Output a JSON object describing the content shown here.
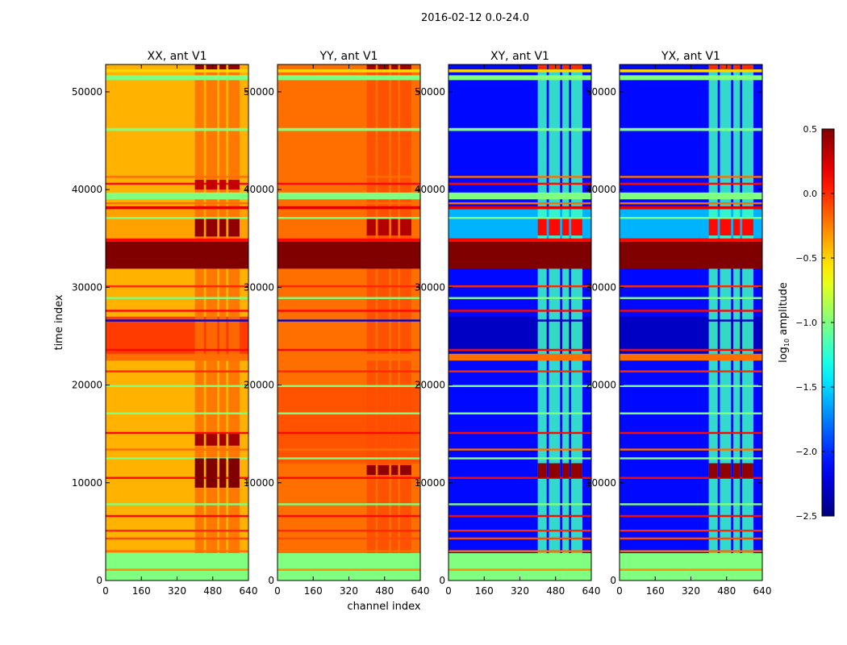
{
  "chart_data": {
    "type": "heatmap",
    "title": "2016-02-12 0.0-24.0",
    "xlabel": "channel index",
    "ylabel": "time index",
    "xlim": [
      0,
      640
    ],
    "ylim": [
      0,
      52800
    ],
    "xticks": [
      "0",
      "160",
      "320",
      "480",
      "640"
    ],
    "xtick_values": [
      0,
      160,
      320,
      480,
      640
    ],
    "yticks": [
      "0",
      "10000",
      "20000",
      "30000",
      "40000",
      "50000"
    ],
    "ytick_values": [
      0,
      10000,
      20000,
      30000,
      40000,
      50000
    ],
    "colorbar": {
      "label": "log10 amplitude",
      "label_main": "log",
      "label_sub": "10",
      "label_rest": " amplitude",
      "colormap": "jet",
      "range": [
        -2.5,
        0.5
      ],
      "ticks": [
        "0.5",
        "0.0",
        "−0.5",
        "−1.0",
        "−1.5",
        "−2.0",
        "−2.5"
      ],
      "tick_values": [
        0.5,
        0.0,
        -0.5,
        -1.0,
        -1.5,
        -2.0,
        -2.5
      ]
    },
    "common_bands": [
      [
        0,
        2800,
        -1.0
      ],
      [
        1000,
        1200,
        -0.3
      ],
      [
        2900,
        3100,
        -0.2
      ],
      [
        4200,
        4400,
        -0.1
      ],
      [
        5000,
        5200,
        0.0
      ],
      [
        6500,
        6700,
        0.1
      ],
      [
        7700,
        7900,
        -1.0
      ],
      [
        10400,
        10600,
        0.1
      ],
      [
        12400,
        12600,
        -1.0
      ],
      [
        13300,
        13500,
        -0.2
      ],
      [
        15000,
        15200,
        0.1
      ],
      [
        17000,
        17200,
        -1.0
      ],
      [
        19800,
        20000,
        -1.0
      ],
      [
        21300,
        21500,
        0.0
      ],
      [
        22500,
        23200,
        -0.2
      ],
      [
        23500,
        23700,
        0.1
      ],
      [
        26500,
        26700,
        -2.3
      ],
      [
        27500,
        27700,
        0.1
      ],
      [
        28800,
        29000,
        -1.0
      ],
      [
        30000,
        30200,
        0.0
      ],
      [
        31900,
        34650,
        0.5
      ],
      [
        34650,
        35000,
        0.1
      ],
      [
        37000,
        37200,
        -1.0
      ],
      [
        38000,
        38300,
        0.2
      ],
      [
        38500,
        38700,
        -0.2
      ],
      [
        39000,
        39700,
        -1.0
      ],
      [
        40500,
        40700,
        0.1
      ],
      [
        41200,
        41400,
        -0.2
      ],
      [
        46000,
        46300,
        -1.0
      ],
      [
        51200,
        51700,
        -1.0
      ],
      [
        52000,
        52300,
        -0.5
      ]
    ],
    "panels": [
      {
        "title": "XX, ant V1",
        "base": -0.4,
        "extra_bands": [
          [
            23000,
            27000,
            -0.05
          ],
          [
            35000,
            38000,
            -0.35
          ]
        ],
        "column_blocks": [
          [
            400,
            440
          ],
          [
            450,
            500
          ],
          [
            510,
            540
          ],
          [
            550,
            600
          ]
        ],
        "column_value": -0.2,
        "hot_spots": [
          [
            9500,
            12500,
            0.5
          ],
          [
            13800,
            15000,
            0.4
          ],
          [
            35200,
            37000,
            0.45
          ],
          [
            40000,
            41000,
            0.3
          ],
          [
            52300,
            52800,
            0.45
          ]
        ]
      },
      {
        "title": "YY, ant V1",
        "base": -0.2,
        "extra_bands": [
          [
            12000,
            20000,
            -0.12
          ]
        ],
        "column_blocks": [
          [
            400,
            440
          ],
          [
            450,
            500
          ],
          [
            510,
            540
          ],
          [
            550,
            600
          ]
        ],
        "column_value": -0.1,
        "hot_spots": [
          [
            10800,
            11800,
            0.45
          ],
          [
            35300,
            37000,
            0.35
          ],
          [
            52300,
            52800,
            0.4
          ]
        ]
      },
      {
        "title": "XY, ant V1",
        "base": -2.1,
        "extra_bands": [
          [
            23000,
            27000,
            -2.3
          ],
          [
            35000,
            38000,
            -1.6
          ]
        ],
        "column_blocks": [
          [
            400,
            440
          ],
          [
            450,
            500
          ],
          [
            510,
            540
          ],
          [
            550,
            600
          ]
        ],
        "column_value": -1.2,
        "hot_spots": [
          [
            10500,
            12000,
            0.45
          ],
          [
            35300,
            37000,
            0.1
          ],
          [
            52300,
            52800,
            0.0
          ]
        ]
      },
      {
        "title": "YX, ant V1",
        "base": -2.1,
        "extra_bands": [
          [
            23000,
            27000,
            -2.3
          ],
          [
            35000,
            38000,
            -1.6
          ]
        ],
        "column_blocks": [
          [
            400,
            440
          ],
          [
            450,
            500
          ],
          [
            510,
            540
          ],
          [
            550,
            600
          ]
        ],
        "column_value": -1.2,
        "hot_spots": [
          [
            10500,
            12000,
            0.45
          ],
          [
            35300,
            37000,
            0.1
          ],
          [
            52300,
            52800,
            0.0
          ]
        ]
      }
    ]
  }
}
